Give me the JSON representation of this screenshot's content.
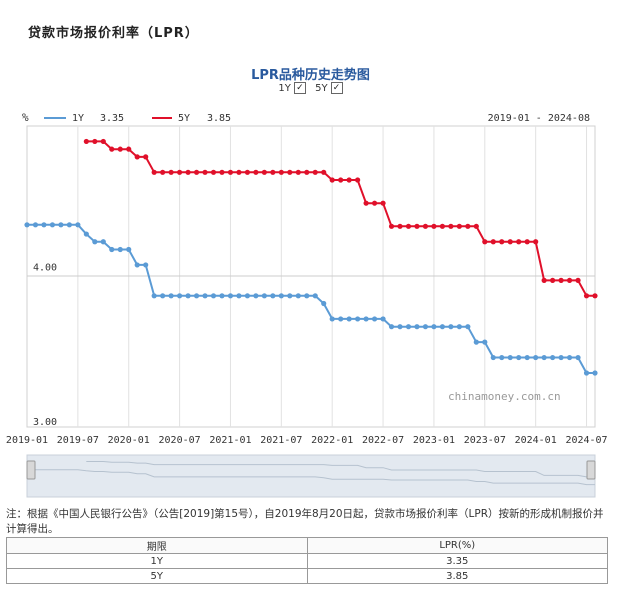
{
  "page": {
    "title": "贷款市场报价利率（LPR）"
  },
  "chart_header": {
    "title": "LPR品种历史走势图",
    "toggles": [
      {
        "label": "1Y",
        "checked": true
      },
      {
        "label": "5Y",
        "checked": true
      }
    ]
  },
  "legend": {
    "unit": "%",
    "items": [
      {
        "name": "1Y",
        "value": "3.35"
      },
      {
        "name": "5Y",
        "value": "3.85"
      }
    ],
    "range": "2019-01 - 2024-08"
  },
  "colors": {
    "one_year": "#5b9bd5",
    "five_year": "#e0102a",
    "title": "#2a5a9e"
  },
  "watermark": "chinamoney.com.cn",
  "note": "注：根据《中国人民银行公告》（公告[2019]第15号），自2019年8月20日起，贷款市场报价利率（LPR）按新的形成机制报价并计算得出。",
  "table": {
    "headers": [
      "期限",
      "LPR(%)"
    ],
    "rows": [
      [
        "1Y",
        "3.35"
      ],
      [
        "5Y",
        "3.85"
      ]
    ]
  },
  "chart_data": {
    "type": "line",
    "unit": "%",
    "yticks": [
      "4.00",
      "3.00"
    ],
    "ylim": [
      3.0,
      4.95
    ],
    "xticks": [
      "2019-01",
      "2019-07",
      "2020-01",
      "2020-07",
      "2021-01",
      "2021-07",
      "2022-01",
      "2022-07",
      "2023-01",
      "2023-07",
      "2024-01",
      "2024-07"
    ],
    "x": [
      "2019-01",
      "2019-02",
      "2019-03",
      "2019-04",
      "2019-05",
      "2019-06",
      "2019-07",
      "2019-08",
      "2019-09",
      "2019-10",
      "2019-11",
      "2019-12",
      "2020-01",
      "2020-02",
      "2020-03",
      "2020-04",
      "2020-05",
      "2020-06",
      "2020-07",
      "2020-08",
      "2020-09",
      "2020-10",
      "2020-11",
      "2020-12",
      "2021-01",
      "2021-02",
      "2021-03",
      "2021-04",
      "2021-05",
      "2021-06",
      "2021-07",
      "2021-08",
      "2021-09",
      "2021-10",
      "2021-11",
      "2021-12",
      "2022-01",
      "2022-02",
      "2022-03",
      "2022-04",
      "2022-05",
      "2022-06",
      "2022-07",
      "2022-08",
      "2022-09",
      "2022-10",
      "2022-11",
      "2022-12",
      "2023-01",
      "2023-02",
      "2023-03",
      "2023-04",
      "2023-05",
      "2023-06",
      "2023-07",
      "2023-08",
      "2023-09",
      "2023-10",
      "2023-11",
      "2023-12",
      "2024-01",
      "2024-02",
      "2024-03",
      "2024-04",
      "2024-05",
      "2024-06",
      "2024-07",
      "2024-08"
    ],
    "series": [
      {
        "name": "1Y",
        "values": [
          4.31,
          4.31,
          4.31,
          4.31,
          4.31,
          4.31,
          4.31,
          4.25,
          4.2,
          4.2,
          4.15,
          4.15,
          4.15,
          4.05,
          4.05,
          3.85,
          3.85,
          3.85,
          3.85,
          3.85,
          3.85,
          3.85,
          3.85,
          3.85,
          3.85,
          3.85,
          3.85,
          3.85,
          3.85,
          3.85,
          3.85,
          3.85,
          3.85,
          3.85,
          3.85,
          3.8,
          3.7,
          3.7,
          3.7,
          3.7,
          3.7,
          3.7,
          3.7,
          3.65,
          3.65,
          3.65,
          3.65,
          3.65,
          3.65,
          3.65,
          3.65,
          3.65,
          3.65,
          3.55,
          3.55,
          3.45,
          3.45,
          3.45,
          3.45,
          3.45,
          3.45,
          3.45,
          3.45,
          3.45,
          3.45,
          3.45,
          3.35,
          3.35
        ]
      },
      {
        "name": "5Y",
        "values": [
          null,
          null,
          null,
          null,
          null,
          null,
          null,
          4.85,
          4.85,
          4.85,
          4.8,
          4.8,
          4.8,
          4.75,
          4.75,
          4.65,
          4.65,
          4.65,
          4.65,
          4.65,
          4.65,
          4.65,
          4.65,
          4.65,
          4.65,
          4.65,
          4.65,
          4.65,
          4.65,
          4.65,
          4.65,
          4.65,
          4.65,
          4.65,
          4.65,
          4.65,
          4.6,
          4.6,
          4.6,
          4.6,
          4.45,
          4.45,
          4.45,
          4.3,
          4.3,
          4.3,
          4.3,
          4.3,
          4.3,
          4.3,
          4.3,
          4.3,
          4.3,
          4.3,
          4.2,
          4.2,
          4.2,
          4.2,
          4.2,
          4.2,
          4.2,
          3.95,
          3.95,
          3.95,
          3.95,
          3.95,
          3.85,
          3.85
        ]
      }
    ]
  }
}
